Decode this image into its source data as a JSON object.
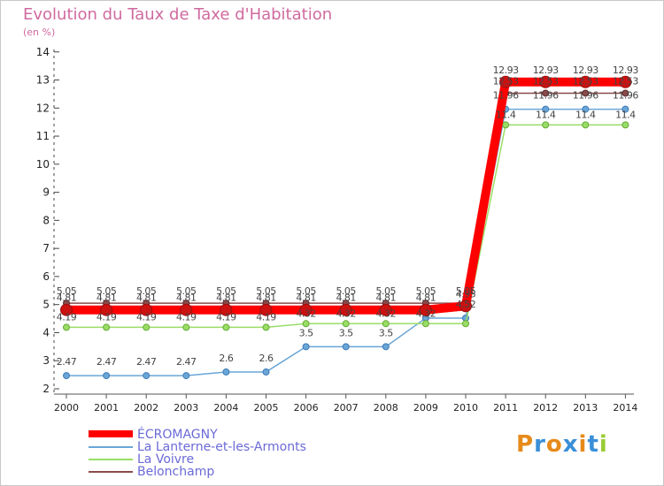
{
  "title": "Evolution du Taux de Taxe d'Habitation",
  "subtitle": "(en %)",
  "logo_text": "Proxiti",
  "chart_data": {
    "type": "line",
    "x": [
      2000,
      2001,
      2002,
      2003,
      2004,
      2005,
      2006,
      2007,
      2008,
      2009,
      2010,
      2011,
      2012,
      2013,
      2014
    ],
    "ylim": [
      2,
      14
    ],
    "yticks": [
      2,
      3,
      4,
      5,
      6,
      7,
      8,
      9,
      10,
      11,
      12,
      13,
      14
    ],
    "grid": false,
    "legend_position": "bottom-left",
    "series": [
      {
        "name": "ÉCROMAGNY",
        "color": "#ff0000",
        "values": [
          4.81,
          4.81,
          4.81,
          4.81,
          4.81,
          4.81,
          4.81,
          4.81,
          4.81,
          4.81,
          4.95,
          12.93,
          12.93,
          12.93,
          12.93
        ],
        "labels": [
          "4.81",
          "4.81",
          "4.81",
          "4.81",
          "4.81",
          "4.81",
          "4.81",
          "4.81",
          "4.81",
          "4.81",
          "4.95",
          "12.93",
          "12.93",
          "12.93",
          "12.93"
        ]
      },
      {
        "name": "La Lanterne-et-les-Armonts",
        "color": "#6aa6d6",
        "values": [
          2.47,
          2.47,
          2.47,
          2.47,
          2.6,
          2.6,
          3.5,
          3.5,
          3.5,
          4.52,
          4.52,
          11.96,
          11.96,
          11.96,
          11.96
        ],
        "labels": [
          "2.47",
          "2.47",
          "2.47",
          "2.47",
          "2.6",
          "2.6",
          "3.5",
          "3.5",
          "3.5",
          "",
          "4.52",
          "11.96",
          "11.96",
          "11.96",
          "11.96"
        ]
      },
      {
        "name": "La Voivre",
        "color": "#99dd66",
        "values": [
          4.19,
          4.19,
          4.19,
          4.19,
          4.19,
          4.19,
          4.32,
          4.32,
          4.32,
          4.32,
          4.32,
          11.4,
          11.4,
          11.4,
          11.4
        ],
        "labels": [
          "4.19",
          "4.19",
          "4.19",
          "4.19",
          "4.19",
          "4.19",
          "4.32",
          "4.32",
          "4.32",
          "4.32",
          "",
          "11.4",
          "11.4",
          "11.4",
          "11.4"
        ]
      },
      {
        "name": "Belonchamp",
        "color": "#8b4a4a",
        "values": [
          5.05,
          5.05,
          5.05,
          5.05,
          5.05,
          5.05,
          5.05,
          5.05,
          5.05,
          5.05,
          5.05,
          12.53,
          12.53,
          12.53,
          12.53
        ],
        "labels": [
          "5.05",
          "5.05",
          "5.05",
          "5.05",
          "5.05",
          "5.05",
          "5.05",
          "5.05",
          "5.05",
          "5.05",
          "5.05",
          "12.53",
          "12.53",
          "12.53",
          "12.53"
        ]
      }
    ]
  }
}
